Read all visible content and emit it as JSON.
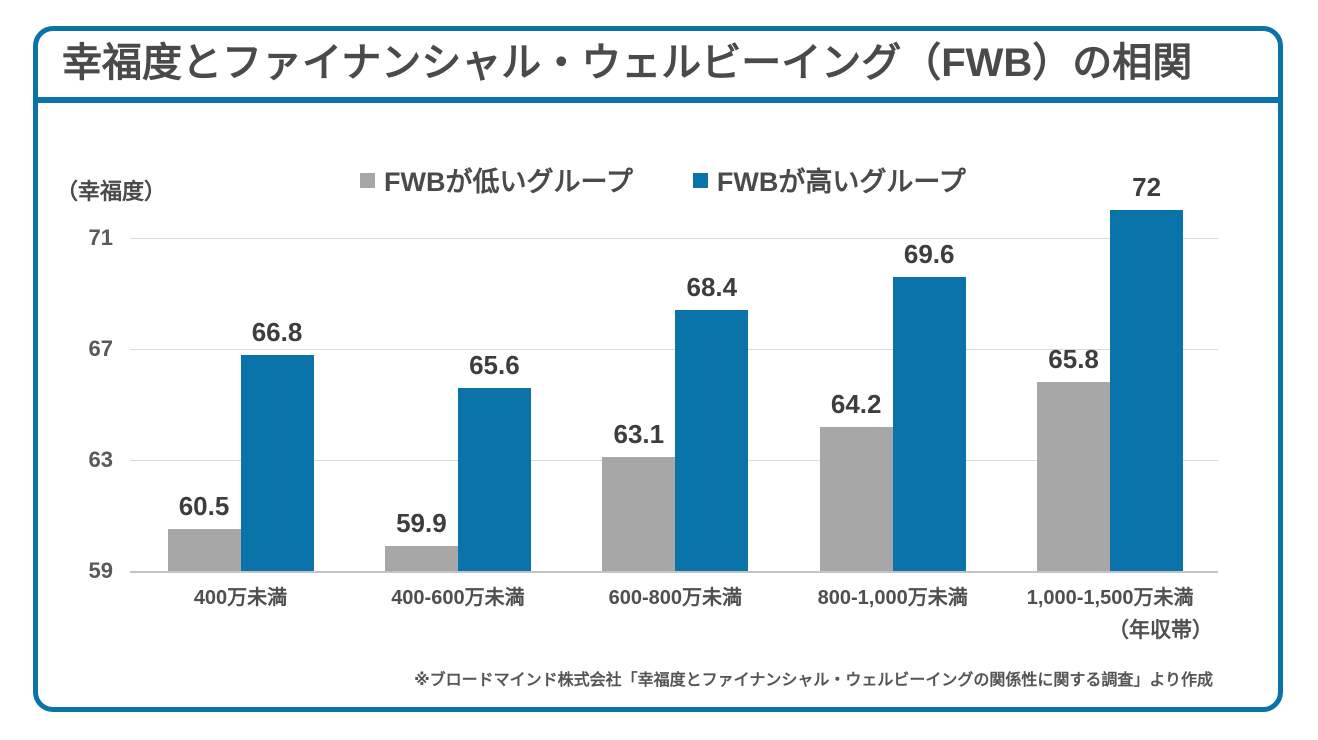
{
  "header": {
    "title": "幸福度とファイナンシャル・ウェルビーイング（FWB）の相関"
  },
  "chart_data": {
    "type": "bar",
    "title": "幸福度とファイナンシャル・ウェルビーイング（FWB）の相関",
    "y_axis_unit": "（幸福度）",
    "x_axis_unit": "（年収帯）",
    "categories": [
      "400万未満",
      "400-600万未満",
      "600-800万未満",
      "800-1,000万未満",
      "1,000-1,500万未満"
    ],
    "series": [
      {
        "name": "FWBが低いグループ",
        "color": "#a7a7a7",
        "values": [
          60.5,
          59.9,
          63.1,
          64.2,
          65.8
        ]
      },
      {
        "name": "FWBが高いグループ",
        "color": "#0a73a9",
        "values": [
          66.8,
          65.6,
          68.4,
          69.6,
          72
        ]
      }
    ],
    "y_ticks": [
      59,
      63,
      67,
      71
    ],
    "ylim": [
      59,
      73.2
    ],
    "grid": true,
    "legend_position": "top-center"
  },
  "footer": {
    "source": "※ブロードマインド株式会社「幸福度とファイナンシャル・ウェルビーイングの関係性に関する調査」より作成"
  },
  "colors": {
    "accent_blue": "#0a73a9",
    "bar_gray": "#a7a7a7",
    "gridline": "#dadada",
    "text_dark": "#4a4a4a"
  }
}
